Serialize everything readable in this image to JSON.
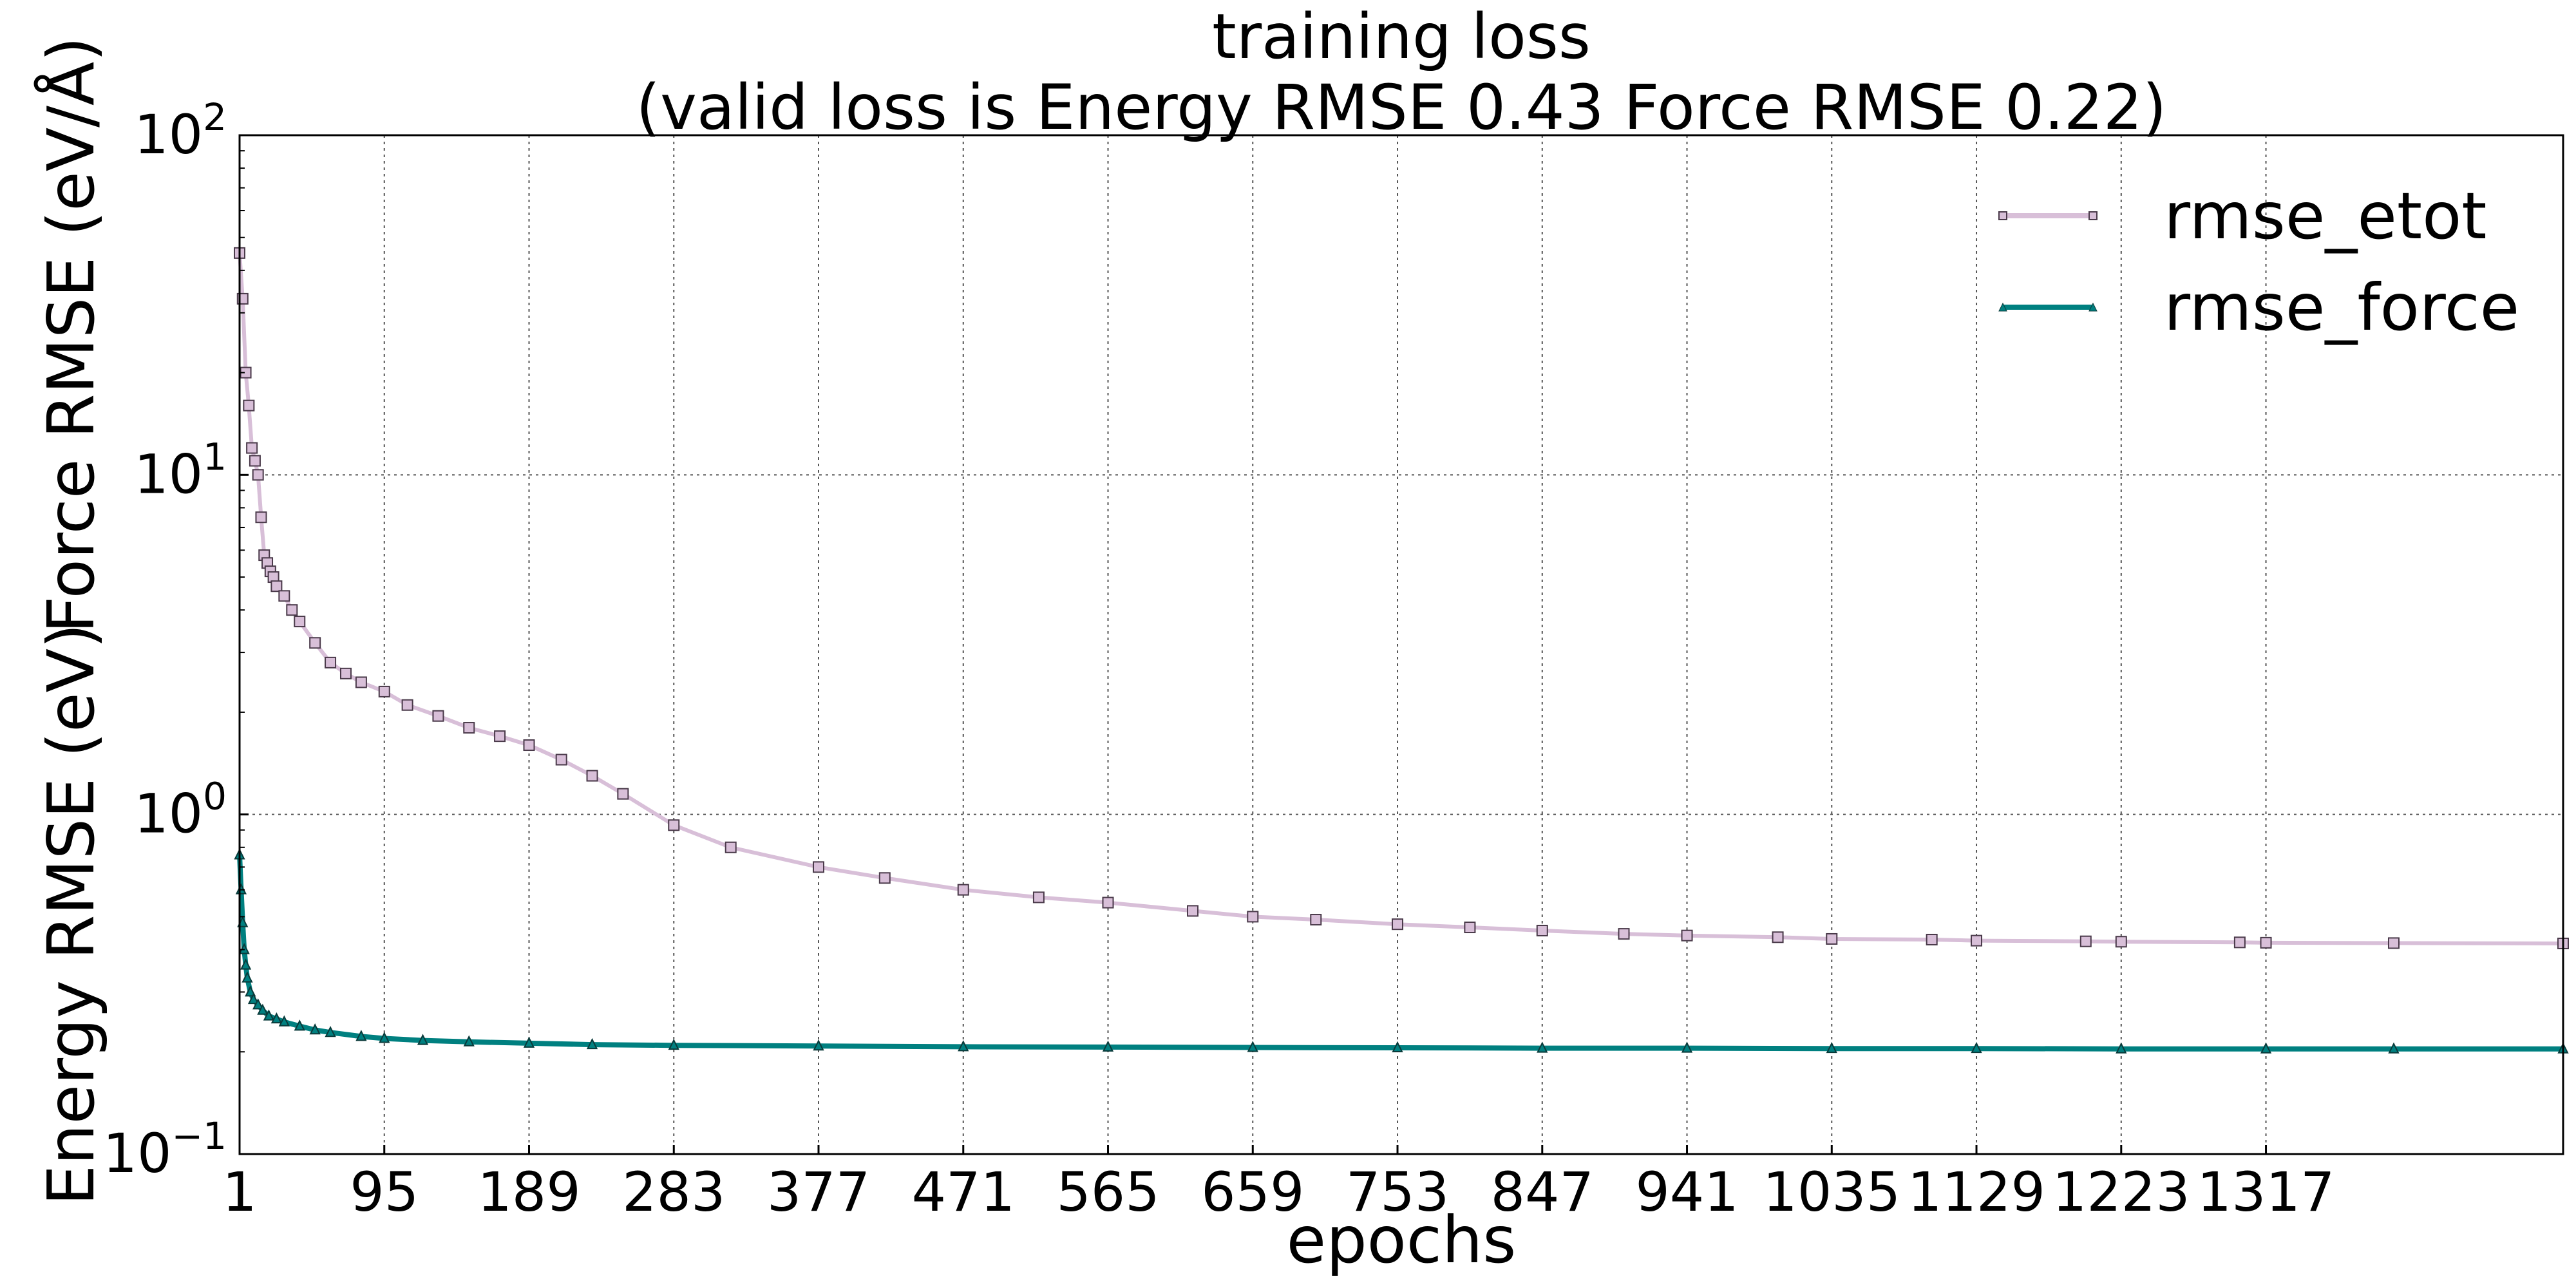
{
  "chart_data": {
    "type": "line",
    "title": "training loss",
    "subtitle": "(valid loss is Energy RMSE 0.43  Force RMSE 0.22)",
    "xlabel": "epochs",
    "ylabel_energy": "Energy RMSE (eV)",
    "ylabel_force": "Force RMSE (eV/Å)",
    "yscale": "log",
    "ylim": [
      0.1,
      100
    ],
    "xlim": [
      1,
      1510
    ],
    "grid": true,
    "legend_position": "top-right",
    "x_ticks": [
      "1",
      "95",
      "189",
      "283",
      "377",
      "471",
      "565",
      "659",
      "753",
      "847",
      "941",
      "1035",
      "1129",
      "1223",
      "1317"
    ],
    "y_ticks": [
      {
        "value": 0.1,
        "base": "10",
        "exp": "−1"
      },
      {
        "value": 1,
        "base": "10",
        "exp": "0"
      },
      {
        "value": 10,
        "base": "10",
        "exp": "1"
      },
      {
        "value": 100,
        "base": "10",
        "exp": "2"
      }
    ],
    "series": [
      {
        "name": "rmse_etot",
        "color": "#d8bfd8",
        "marker_edge": "#4a3a4a",
        "marker": "square",
        "x": [
          1,
          3,
          5,
          7,
          9,
          11,
          13,
          15,
          17,
          19,
          21,
          23,
          25,
          30,
          35,
          40,
          50,
          60,
          70,
          80,
          95,
          110,
          130,
          150,
          170,
          189,
          210,
          230,
          250,
          283,
          320,
          377,
          420,
          471,
          520,
          565,
          620,
          659,
          700,
          753,
          800,
          847,
          900,
          941,
          1000,
          1035,
          1100,
          1129,
          1200,
          1223,
          1300,
          1317,
          1400,
          1510
        ],
        "values": [
          45,
          33,
          20,
          16,
          12,
          11,
          10,
          7.5,
          5.8,
          5.5,
          5.2,
          5.0,
          4.7,
          4.4,
          4.0,
          3.7,
          3.2,
          2.8,
          2.6,
          2.45,
          2.3,
          2.1,
          1.95,
          1.8,
          1.7,
          1.6,
          1.45,
          1.3,
          1.15,
          0.93,
          0.8,
          0.7,
          0.65,
          0.6,
          0.57,
          0.55,
          0.52,
          0.5,
          0.49,
          0.475,
          0.465,
          0.455,
          0.445,
          0.44,
          0.435,
          0.43,
          0.428,
          0.425,
          0.423,
          0.422,
          0.42,
          0.419,
          0.418,
          0.417
        ]
      },
      {
        "name": "rmse_force",
        "color": "#008080",
        "marker_edge": "#0a3a3a",
        "marker": "triangle",
        "x": [
          1,
          2,
          3,
          4,
          5,
          6,
          8,
          10,
          13,
          16,
          20,
          25,
          30,
          40,
          50,
          60,
          80,
          95,
          120,
          150,
          189,
          230,
          283,
          377,
          471,
          565,
          659,
          753,
          847,
          941,
          1035,
          1129,
          1223,
          1317,
          1400,
          1510
        ],
        "values": [
          0.76,
          0.6,
          0.48,
          0.4,
          0.36,
          0.33,
          0.3,
          0.285,
          0.275,
          0.265,
          0.255,
          0.25,
          0.245,
          0.238,
          0.232,
          0.228,
          0.222,
          0.219,
          0.216,
          0.214,
          0.212,
          0.21,
          0.209,
          0.208,
          0.207,
          0.2065,
          0.206,
          0.2055,
          0.205,
          0.205,
          0.2045,
          0.2045,
          0.204,
          0.204,
          0.204,
          0.204
        ]
      }
    ]
  }
}
